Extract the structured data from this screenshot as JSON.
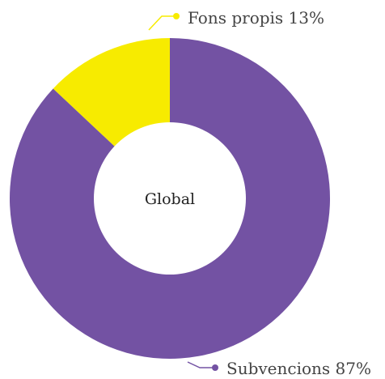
{
  "chart_data": {
    "type": "pie",
    "center_label": "Global",
    "slices": [
      {
        "label": "Fons propis 13%",
        "value": 13,
        "color": "#f7eb00"
      },
      {
        "label": "Subvencions 87%",
        "value": 87,
        "color": "#7352a3"
      }
    ]
  }
}
